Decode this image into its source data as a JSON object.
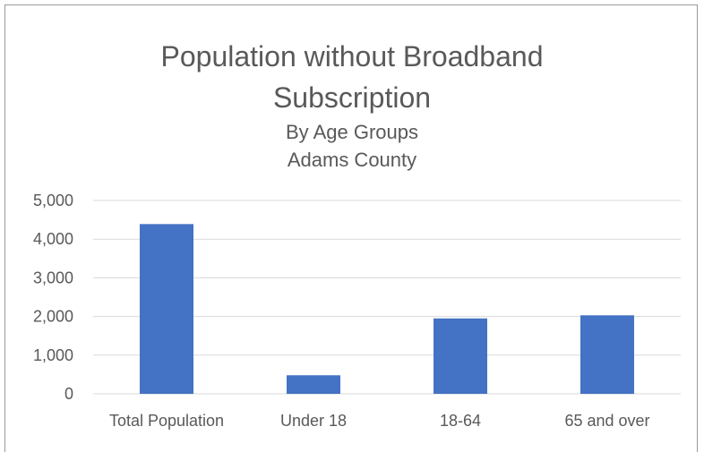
{
  "chart_data": {
    "type": "bar",
    "title": "Population without Broadband Subscription",
    "subtitle_lines": [
      "By Age Groups",
      "Adams County"
    ],
    "categories": [
      "Total Population",
      "Under 18",
      "18-64",
      "65 and over"
    ],
    "values": [
      4390,
      480,
      1950,
      2030
    ],
    "ylim": [
      0,
      5000
    ],
    "y_ticks": [
      0,
      1000,
      2000,
      3000,
      4000,
      5000
    ],
    "y_tick_labels": [
      "0",
      "1,000",
      "2,000",
      "3,000",
      "4,000",
      "5,000"
    ],
    "xlabel": "",
    "ylabel": "",
    "grid": true,
    "legend": "none",
    "bar_color": "#4472C4",
    "grid_color": "#d9d9d9",
    "text_color": "#595959"
  }
}
